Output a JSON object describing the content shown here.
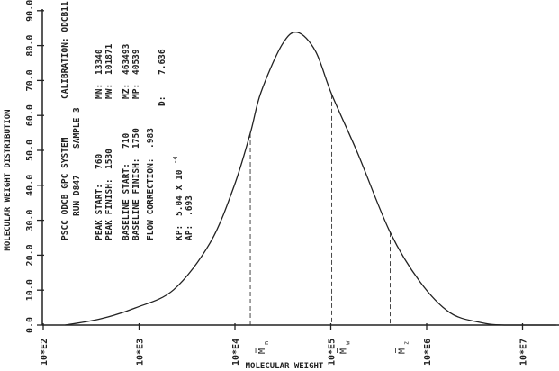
{
  "chart_data": {
    "type": "line",
    "title": "PSCC ODCB GPC SYSTEM",
    "xlabel": "MOLECULAR WEIGHT",
    "ylabel": "MOLECULAR WEIGHT DISTRIBUTION",
    "xscale": "log",
    "xlim_log10": [
      2,
      7.35
    ],
    "ylim": [
      0,
      90
    ],
    "x_ticks": [
      {
        "log10": 2,
        "label": "10*E2"
      },
      {
        "log10": 3,
        "label": "10*E3"
      },
      {
        "log10": 4,
        "label": "10*E4"
      },
      {
        "log10": 5,
        "label": "10*E5"
      },
      {
        "log10": 6,
        "label": "10*E6"
      },
      {
        "log10": 7,
        "label": "10*E7"
      }
    ],
    "y_ticks": [
      {
        "value": 0,
        "label": "0.0"
      },
      {
        "value": 10,
        "label": "10.0"
      },
      {
        "value": 20,
        "label": "20.0"
      },
      {
        "value": 30,
        "label": "30.0"
      },
      {
        "value": 40,
        "label": "40.0"
      },
      {
        "value": 50,
        "label": "50.0"
      },
      {
        "value": 60,
        "label": "60.0"
      },
      {
        "value": 70,
        "label": "70.0"
      },
      {
        "value": 80,
        "label": "80.0"
      },
      {
        "value": 90,
        "label": "90.0"
      }
    ],
    "series": [
      {
        "name": "distribution",
        "log10_x": [
          2.23,
          2.6,
          2.96,
          3.36,
          3.74,
          3.99,
          4.16,
          4.27,
          4.49,
          4.65,
          4.84,
          5.01,
          5.28,
          5.62,
          5.93,
          6.24,
          6.55,
          6.81,
          7.35
        ],
        "y": [
          0,
          1.8,
          4.9,
          10.1,
          23.5,
          39.7,
          54.9,
          66.5,
          80.2,
          83.8,
          78.4,
          66.0,
          49.2,
          26.5,
          12.4,
          3.6,
          0.8,
          0,
          0
        ]
      }
    ],
    "markers": [
      {
        "name": "Mn",
        "letter": "M",
        "sub": "n",
        "log10_x": 4.16,
        "y": 54.9
      },
      {
        "name": "Mw",
        "letter": "M",
        "sub": "w",
        "log10_x": 5.01,
        "y": 66.0
      },
      {
        "name": "Mz",
        "letter": "M",
        "sub": "z",
        "log10_x": 5.62,
        "y": 26.5
      }
    ],
    "info": {
      "system": "PSCC ODCB GPC SYSTEM",
      "calibration": "CALIBRATION: ODCB11",
      "run": "RUN D847",
      "sample": "SAMPLE 3",
      "peak_start_label": "PEAK START:",
      "peak_start": "760",
      "peak_finish_label": "PEAK FINISH:",
      "peak_finish": "1530",
      "baseline_start_label": "BASELINE START:",
      "baseline_start": "710",
      "baseline_finish_label": "BASELINE FINISH:",
      "baseline_finish": "1750",
      "flow_label": "FLOW CORRECTION:",
      "flow": ".983",
      "kp_label": "KP:",
      "kp": "5.04 X 10",
      "kp_exp": "-4",
      "ap_label": "AP:",
      "ap": ".693",
      "mn_label": "MN:",
      "mn": "13340",
      "mw_label": "MW:",
      "mw": "101871",
      "mz_label": "MZ:",
      "mz": "463493",
      "mp_label": "MP:",
      "mp": "40539",
      "d_label": "D:",
      "d": "7.636"
    }
  }
}
